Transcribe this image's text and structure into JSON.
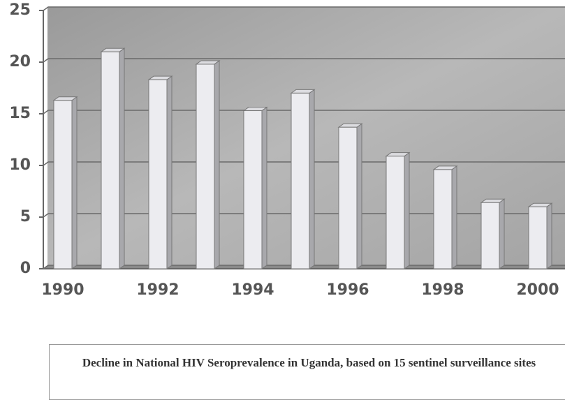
{
  "chart_data": {
    "type": "bar",
    "title": "Decline in National HIV Seroprevalence in Uganda, based on 15 sentinel surveillance sites",
    "categories": [
      "1990",
      null,
      "1992",
      null,
      "1994",
      null,
      "1996",
      null,
      "1998",
      null,
      "2000"
    ],
    "values": [
      16.3,
      21,
      18.3,
      19.8,
      15.3,
      17,
      13.7,
      10.9,
      9.6,
      6.4,
      6.0
    ],
    "color": "#ececf0",
    "ylim": [
      0,
      25
    ],
    "yticks": [
      0,
      5,
      10,
      15,
      20,
      25
    ],
    "grid": true
  }
}
